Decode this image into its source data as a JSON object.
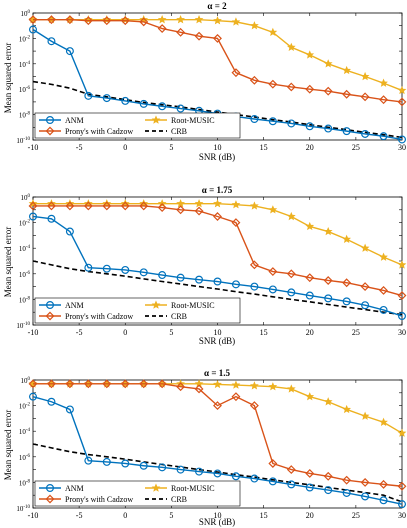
{
  "chart_data": [
    {
      "type": "line",
      "title": "α = 2",
      "xlabel": "SNR (dB)",
      "ylabel": "Mean squared error",
      "yscale": "log",
      "xlim": [
        -10,
        30
      ],
      "ylim": [
        1e-10,
        1
      ],
      "grid": false,
      "legend": "bottom-left",
      "x": [
        -10,
        -8,
        -6,
        -4,
        -2,
        0,
        2,
        4,
        6,
        8,
        10,
        12,
        14,
        16,
        18,
        20,
        22,
        24,
        26,
        28,
        30
      ],
      "series": [
        {
          "name": "ANM",
          "color": "#0072BD",
          "marker": "circle",
          "values": [
            0.05,
            0.006,
            0.001,
            3e-07,
            2e-07,
            1.2e-07,
            7e-08,
            4.5e-08,
            3e-08,
            2e-08,
            1.2e-08,
            7e-09,
            4.5e-09,
            3e-09,
            2e-09,
            1.2e-09,
            8e-10,
            5e-10,
            3e-10,
            2e-10,
            1.1e-10
          ]
        },
        {
          "name": "Prony's with Cadzow",
          "color": "#D95319",
          "marker": "diamond",
          "values": [
            0.3,
            0.3,
            0.3,
            0.25,
            0.25,
            0.25,
            0.2,
            0.06,
            0.03,
            0.015,
            0.01,
            2e-05,
            5e-06,
            2.5e-06,
            1.5e-06,
            1e-06,
            7e-07,
            4e-07,
            2.5e-07,
            1.5e-07,
            1e-07
          ]
        },
        {
          "name": "Root-MUSIC",
          "color": "#EDB120",
          "marker": "star",
          "values": [
            0.3,
            0.3,
            0.3,
            0.3,
            0.3,
            0.3,
            0.3,
            0.3,
            0.3,
            0.3,
            0.25,
            0.2,
            0.1,
            0.03,
            0.002,
            0.0005,
            0.0001,
            3e-05,
            1e-05,
            3e-06,
            8e-07
          ]
        },
        {
          "name": "CRB",
          "color": "#000000",
          "marker": "none",
          "dash": true,
          "values": [
            4e-06,
            2.4e-06,
            1.2e-06,
            4e-07,
            2.5e-07,
            1.5e-07,
            9e-08,
            6e-08,
            4e-08,
            2.5e-08,
            1.6e-08,
            1e-08,
            6.5e-09,
            4e-09,
            2.6e-09,
            1.6e-09,
            1e-09,
            6.5e-10,
            4e-10,
            2.6e-10,
            1.6e-10
          ]
        }
      ]
    },
    {
      "type": "line",
      "title": "α = 1.75",
      "xlabel": "SNR (dB)",
      "ylabel": "Mean squared error",
      "yscale": "log",
      "xlim": [
        -10,
        30
      ],
      "ylim": [
        1e-10,
        1
      ],
      "grid": false,
      "legend": "bottom-left",
      "x": [
        -10,
        -8,
        -6,
        -4,
        -2,
        0,
        2,
        4,
        6,
        8,
        10,
        12,
        14,
        16,
        18,
        20,
        22,
        24,
        26,
        28,
        30
      ],
      "series": [
        {
          "name": "ANM",
          "color": "#0072BD",
          "marker": "circle",
          "values": [
            0.03,
            0.02,
            0.002,
            3e-06,
            2.5e-06,
            2e-06,
            1.3e-06,
            8e-07,
            5e-07,
            3.5e-07,
            2.5e-07,
            1.5e-07,
            1e-07,
            6e-08,
            3.5e-08,
            2e-08,
            1.2e-08,
            7e-09,
            3.5e-09,
            1.5e-09,
            5e-10
          ]
        },
        {
          "name": "Prony's with Cadzow",
          "color": "#D95319",
          "marker": "diamond",
          "values": [
            0.2,
            0.2,
            0.2,
            0.2,
            0.2,
            0.2,
            0.2,
            0.15,
            0.1,
            0.08,
            0.03,
            0.01,
            5e-06,
            1.5e-06,
            1e-06,
            5e-07,
            3e-07,
            2e-07,
            1e-07,
            5e-08,
            2e-08
          ]
        },
        {
          "name": "Root-MUSIC",
          "color": "#EDB120",
          "marker": "star",
          "values": [
            0.3,
            0.3,
            0.3,
            0.3,
            0.3,
            0.3,
            0.3,
            0.3,
            0.3,
            0.3,
            0.3,
            0.25,
            0.2,
            0.1,
            0.03,
            0.005,
            0.002,
            0.0005,
            0.0001,
            2e-05,
            5e-06
          ]
        },
        {
          "name": "CRB",
          "color": "#000000",
          "marker": "none",
          "dash": true,
          "values": [
            1e-05,
            5e-06,
            2.5e-06,
            1.5e-06,
            1e-06,
            6.5e-07,
            4e-07,
            2.5e-07,
            1.6e-07,
            1e-07,
            6.5e-08,
            4e-08,
            2.6e-08,
            1.6e-08,
            1e-08,
            6.5e-09,
            4e-09,
            2.5e-09,
            1.6e-09,
            1e-09,
            6.5e-10
          ]
        }
      ]
    },
    {
      "type": "line",
      "title": "α = 1.5",
      "xlabel": "SNR (dB)",
      "ylabel": "Mean squared error",
      "yscale": "log",
      "xlim": [
        -10,
        30
      ],
      "ylim": [
        1e-10,
        1
      ],
      "grid": false,
      "legend": "bottom-left",
      "x": [
        -10,
        -8,
        -6,
        -4,
        -2,
        0,
        2,
        4,
        6,
        8,
        10,
        12,
        14,
        16,
        18,
        20,
        22,
        24,
        26,
        28,
        30
      ],
      "series": [
        {
          "name": "ANM",
          "color": "#0072BD",
          "marker": "circle",
          "values": [
            0.05,
            0.02,
            0.005,
            5e-07,
            4e-07,
            3e-07,
            2e-07,
            1.5e-07,
            1e-07,
            7e-08,
            5e-08,
            3e-08,
            2e-08,
            1.2e-08,
            7e-09,
            4e-09,
            2.5e-09,
            1.5e-09,
            8e-10,
            4e-10,
            2e-10
          ]
        },
        {
          "name": "Prony's with Cadzow",
          "color": "#D95319",
          "marker": "diamond",
          "values": [
            0.5,
            0.5,
            0.5,
            0.5,
            0.5,
            0.5,
            0.5,
            0.5,
            0.3,
            0.2,
            0.01,
            0.05,
            0.01,
            3e-07,
            1e-07,
            5e-08,
            3e-08,
            1.5e-08,
            1e-08,
            7e-09,
            5e-09
          ]
        },
        {
          "name": "Root-MUSIC",
          "color": "#EDB120",
          "marker": "star",
          "values": [
            0.5,
            0.5,
            0.5,
            0.5,
            0.5,
            0.5,
            0.5,
            0.5,
            0.5,
            0.5,
            0.45,
            0.4,
            0.35,
            0.3,
            0.2,
            0.05,
            0.02,
            0.005,
            0.0015,
            0.0005,
            7e-05
          ]
        },
        {
          "name": "CRB",
          "color": "#000000",
          "marker": "none",
          "dash": true,
          "values": [
            1e-05,
            5e-06,
            2.5e-06,
            1.5e-06,
            1e-06,
            6.5e-07,
            4e-07,
            2.5e-07,
            1.6e-07,
            1e-07,
            6.5e-08,
            4e-08,
            2.6e-08,
            1.6e-08,
            1e-08,
            6.5e-09,
            4e-09,
            2.5e-09,
            1.6e-09,
            1e-09,
            3e-10
          ]
        }
      ]
    }
  ]
}
